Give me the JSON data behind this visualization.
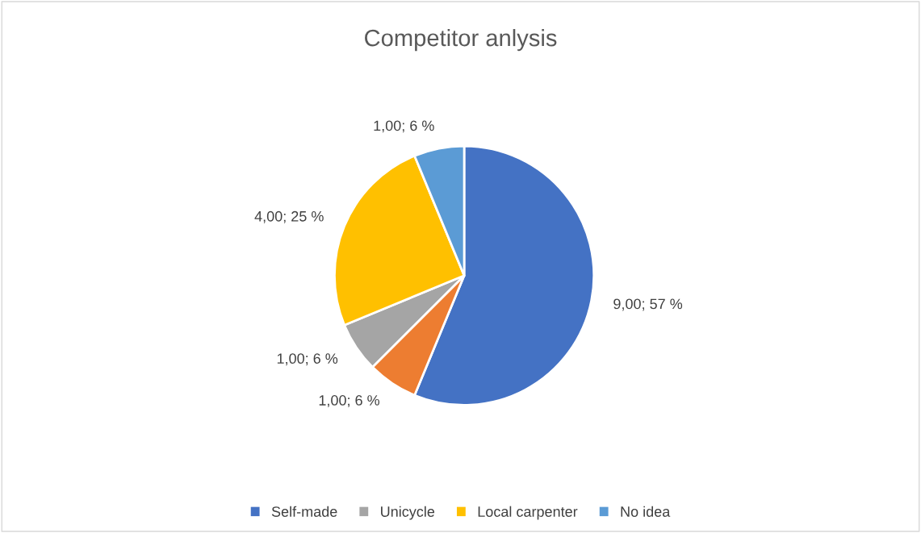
{
  "chart_data": {
    "type": "pie",
    "title": "Competitor anlysis",
    "categories": [
      "Self-made",
      null,
      "Unicycle",
      "Local carpenter",
      "No idea"
    ],
    "values": [
      9,
      1,
      1,
      4,
      1
    ],
    "colors": [
      "#4472c4",
      "#ed7d31",
      "#a5a5a5",
      "#ffc000",
      "#5b9bd5"
    ],
    "value_labels": [
      "9,00; 57 %",
      "1,00; 6 %",
      "1,00; 6 %",
      "4,00; 25 %",
      "1,00; 6 %"
    ],
    "legend": "bottom"
  }
}
